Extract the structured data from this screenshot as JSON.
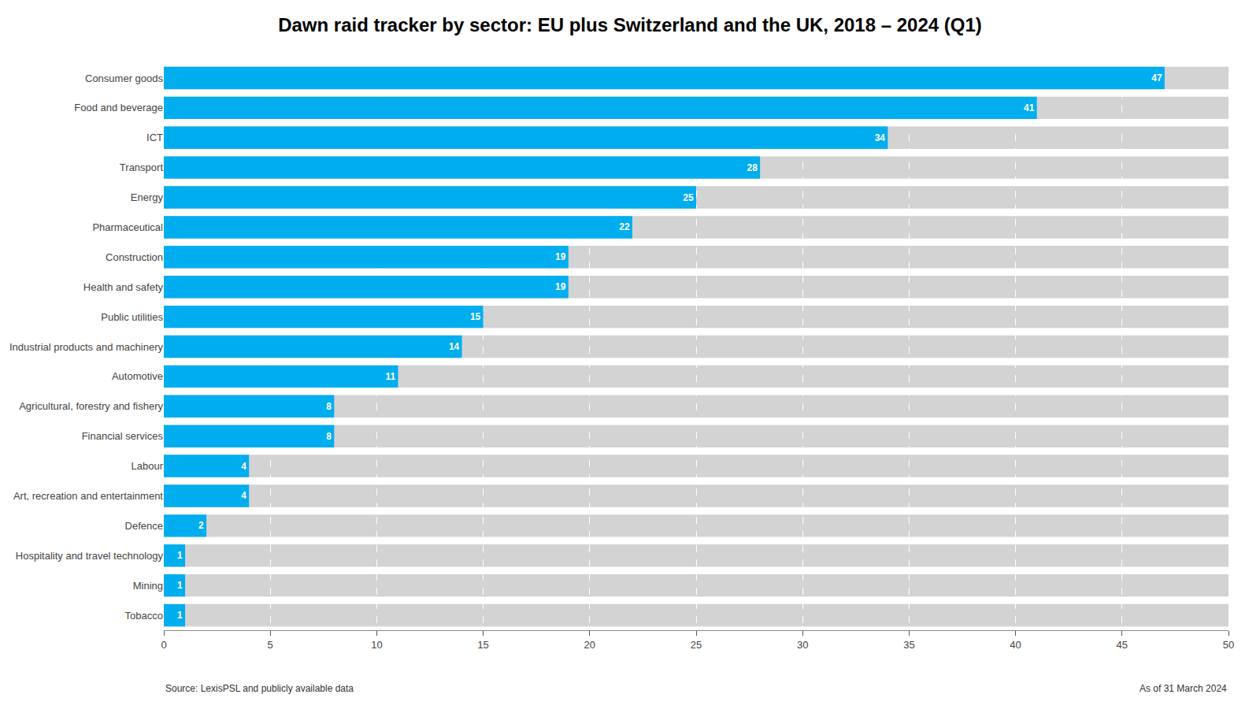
{
  "chart_data": {
    "type": "bar",
    "orientation": "horizontal",
    "title": "Dawn raid tracker by sector: EU plus Switzerland and the UK, 2018 – 2024 (Q1)",
    "categories": [
      "Tobacco",
      "Mining",
      "Hospitality and travel technology",
      "Defence",
      "Art, recreation and entertainment",
      "Labour",
      "Financial services",
      "Agricultural, forestry and fishery",
      "Automotive",
      "Industrial products and machinery",
      "Public utilities",
      "Health and safety",
      "Construction",
      "Pharmaceutical",
      "Energy",
      "Transport",
      "ICT",
      "Food and beverage",
      "Consumer goods"
    ],
    "values": [
      1,
      1,
      1,
      2,
      4,
      4,
      8,
      8,
      11,
      14,
      15,
      19,
      19,
      22,
      25,
      28,
      34,
      41,
      47
    ],
    "color": "#00AEEF",
    "xlim": [
      0,
      50
    ],
    "xticks": [
      0,
      5,
      10,
      15,
      20,
      25,
      30,
      35,
      40,
      45,
      50
    ],
    "grid": true,
    "data_labels": true,
    "annotations": [
      "Source: LexisPSL and publicly available data",
      "As of 31 March 2024"
    ]
  }
}
